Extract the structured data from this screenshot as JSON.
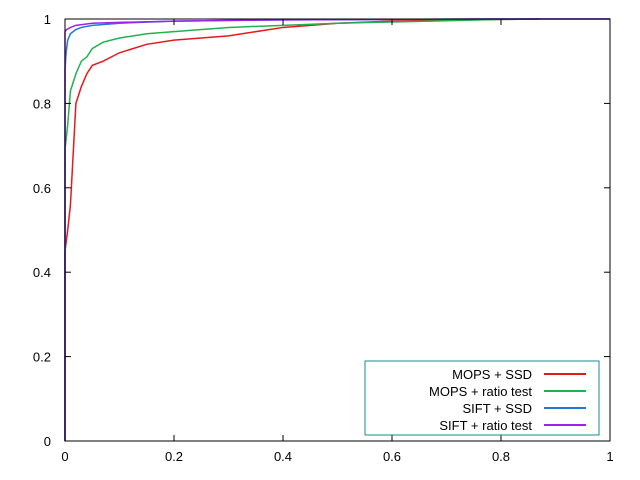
{
  "chart_data": {
    "type": "line",
    "title": "",
    "xlabel": "",
    "ylabel": "",
    "xlim": [
      0,
      1
    ],
    "ylim": [
      0,
      1
    ],
    "x_ticks": [
      "0",
      "0.2",
      "0.4",
      "0.6",
      "0.8",
      "1"
    ],
    "y_ticks": [
      "0",
      "0.2",
      "0.4",
      "0.6",
      "0.8",
      "1"
    ],
    "grid": false,
    "legend": "bottom-right",
    "series": [
      {
        "name": "MOPS + SSD",
        "color": "#e31a1c",
        "points": [
          [
            0,
            0
          ],
          [
            0.0,
            0.45
          ],
          [
            0.005,
            0.5
          ],
          [
            0.01,
            0.56
          ],
          [
            0.02,
            0.8
          ],
          [
            0.03,
            0.84
          ],
          [
            0.04,
            0.87
          ],
          [
            0.05,
            0.89
          ],
          [
            0.07,
            0.9
          ],
          [
            0.1,
            0.92
          ],
          [
            0.15,
            0.94
          ],
          [
            0.2,
            0.95
          ],
          [
            0.3,
            0.96
          ],
          [
            0.4,
            0.98
          ],
          [
            0.5,
            0.99
          ],
          [
            0.6,
            0.995
          ],
          [
            0.7,
            0.997
          ],
          [
            0.8,
            0.999
          ],
          [
            0.87,
            1.0
          ]
        ]
      },
      {
        "name": "MOPS + ratio test",
        "color": "#22b14c",
        "points": [
          [
            0,
            0
          ],
          [
            0.0,
            0.69
          ],
          [
            0.005,
            0.75
          ],
          [
            0.01,
            0.83
          ],
          [
            0.02,
            0.87
          ],
          [
            0.03,
            0.9
          ],
          [
            0.04,
            0.91
          ],
          [
            0.05,
            0.93
          ],
          [
            0.07,
            0.945
          ],
          [
            0.1,
            0.955
          ],
          [
            0.15,
            0.965
          ],
          [
            0.2,
            0.97
          ],
          [
            0.3,
            0.98
          ],
          [
            0.4,
            0.985
          ],
          [
            0.5,
            0.99
          ],
          [
            0.6,
            0.993
          ],
          [
            0.7,
            0.996
          ],
          [
            0.8,
            0.999
          ],
          [
            0.87,
            1.0
          ]
        ]
      },
      {
        "name": "SIFT + SSD",
        "color": "#1f78d4",
        "points": [
          [
            0,
            0
          ],
          [
            0.0,
            0.88
          ],
          [
            0.002,
            0.92
          ],
          [
            0.005,
            0.95
          ],
          [
            0.01,
            0.965
          ],
          [
            0.02,
            0.975
          ],
          [
            0.03,
            0.98
          ],
          [
            0.05,
            0.985
          ],
          [
            0.1,
            0.99
          ],
          [
            0.2,
            0.995
          ],
          [
            0.4,
            0.998
          ],
          [
            0.6,
            0.999
          ],
          [
            0.75,
            1.0
          ],
          [
            1.0,
            1.0
          ]
        ]
      },
      {
        "name": "SIFT + ratio test",
        "color": "#a020f0",
        "points": [
          [
            0,
            0
          ],
          [
            0.0,
            0.97
          ],
          [
            0.003,
            0.975
          ],
          [
            0.01,
            0.98
          ],
          [
            0.02,
            0.985
          ],
          [
            0.05,
            0.99
          ],
          [
            0.1,
            0.992
          ],
          [
            0.2,
            0.995
          ],
          [
            0.4,
            0.998
          ],
          [
            0.6,
            0.999
          ],
          [
            0.8,
            1.0
          ],
          [
            1.0,
            1.0
          ]
        ]
      }
    ]
  }
}
